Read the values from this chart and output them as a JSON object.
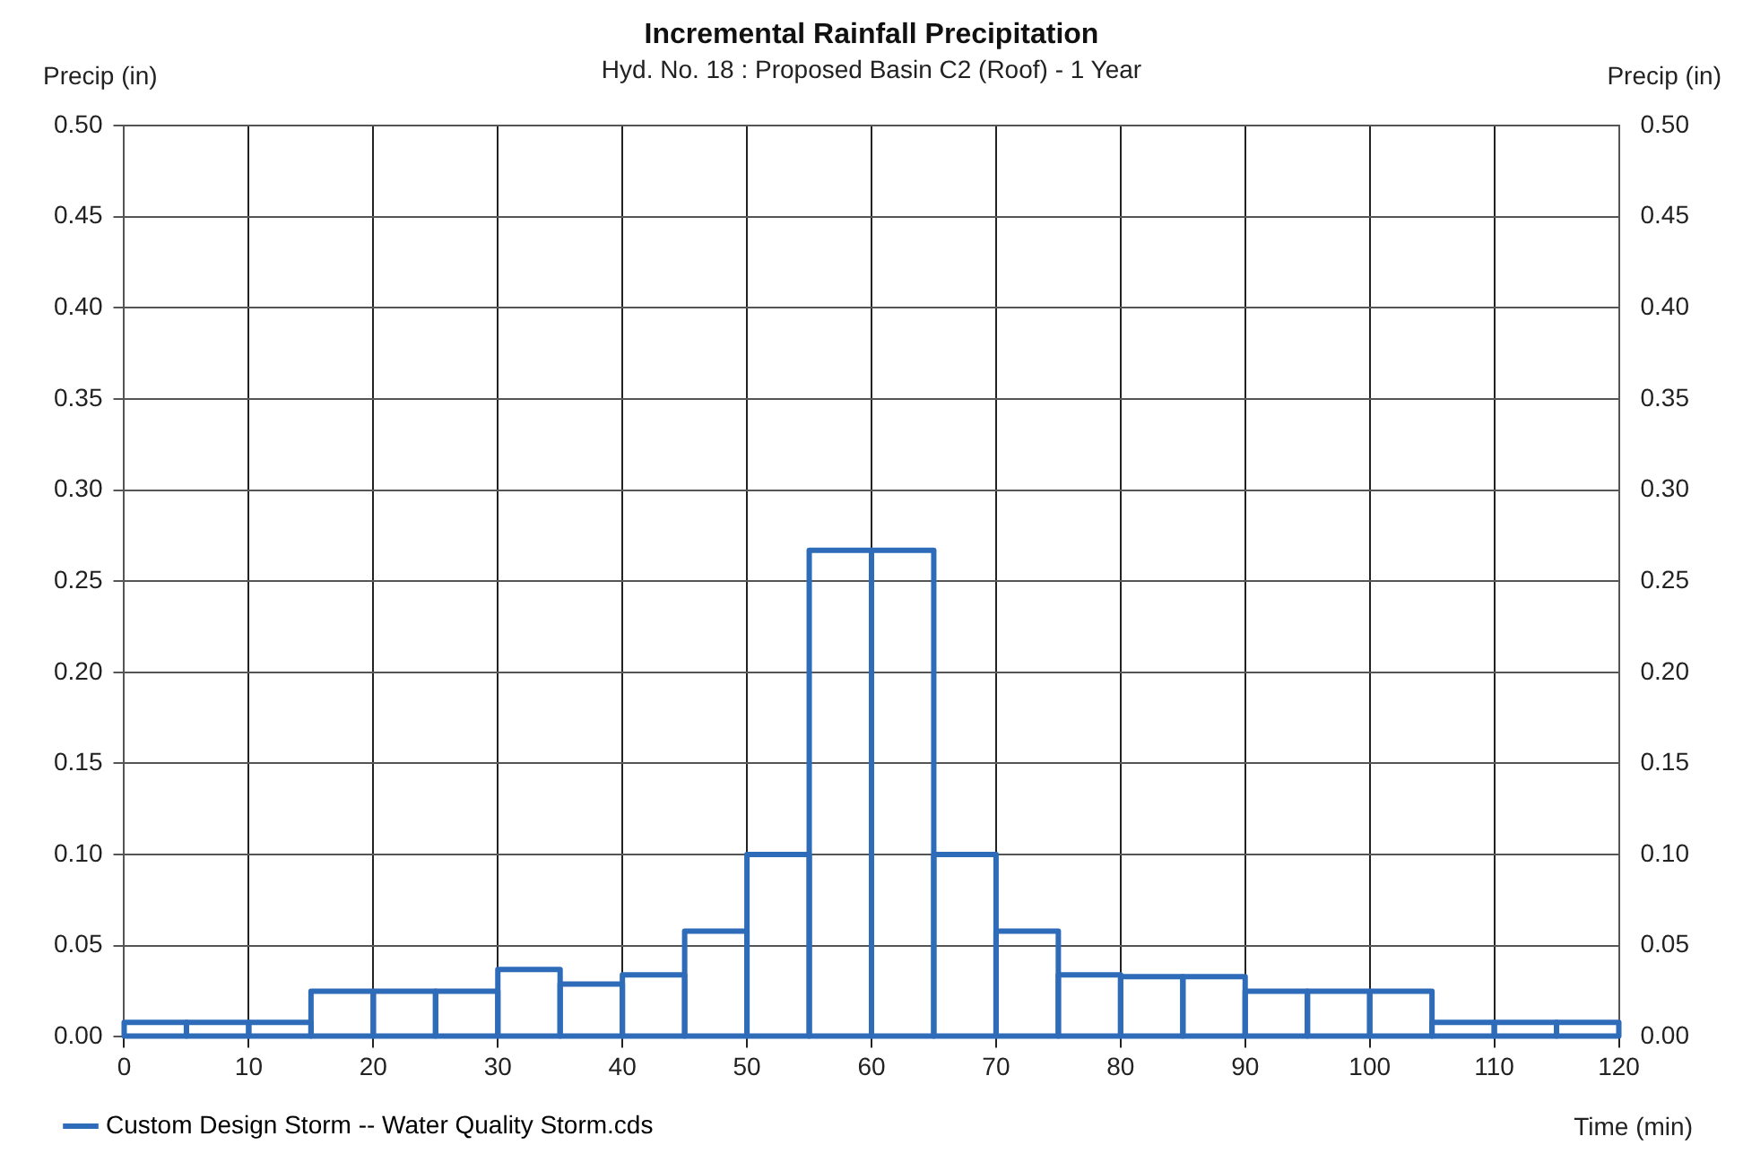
{
  "chart_data": {
    "type": "histogram",
    "title": "Incremental Rainfall Precipitation",
    "subtitle": "Hyd. No. 18 : Proposed Basin C2 (Roof) - 1 Year",
    "xlabel": "Time (min)",
    "ylabel": "Precip (in)",
    "y2label": "Precip (in)",
    "bins": [
      0,
      5,
      10,
      15,
      20,
      25,
      30,
      35,
      40,
      45,
      50,
      55,
      60,
      65,
      70,
      75,
      80,
      85,
      90,
      95,
      100,
      105,
      110,
      115,
      120
    ],
    "series": [
      {
        "name": "Custom Design Storm -- Water Quality Storm.cds",
        "color": "#2e6bb8",
        "values": [
          0.008,
          0.008,
          0.008,
          0.025,
          0.025,
          0.025,
          0.037,
          0.029,
          0.034,
          0.058,
          0.1,
          0.267,
          0.267,
          0.1,
          0.058,
          0.034,
          0.033,
          0.033,
          0.025,
          0.025,
          0.025,
          0.008,
          0.008,
          0.008
        ]
      }
    ],
    "xlim": [
      0,
      120
    ],
    "xticks": [
      0,
      10,
      20,
      30,
      40,
      50,
      60,
      70,
      80,
      90,
      100,
      110,
      120
    ],
    "ylim": [
      0,
      0.5
    ],
    "yticks": [
      {
        "value": 0,
        "label": "0.00"
      },
      {
        "value": 0.05,
        "label": "0.05"
      },
      {
        "value": 0.1,
        "label": "0.10"
      },
      {
        "value": 0.15,
        "label": "0.15"
      },
      {
        "value": 0.2,
        "label": "0.20"
      },
      {
        "value": 0.25,
        "label": "0.25"
      },
      {
        "value": 0.3,
        "label": "0.30"
      },
      {
        "value": 0.35,
        "label": "0.35"
      },
      {
        "value": 0.4,
        "label": "0.40"
      },
      {
        "value": 0.45,
        "label": "0.45"
      },
      {
        "value": 0.5,
        "label": "0.50"
      }
    ],
    "y2lim": [
      0,
      0.5
    ],
    "y2ticks": [
      {
        "value": 0,
        "label": "0.00"
      },
      {
        "value": 0.05,
        "label": "0.05"
      },
      {
        "value": 0.1,
        "label": "0.10"
      },
      {
        "value": 0.15,
        "label": "0.15"
      },
      {
        "value": 0.2,
        "label": "0.20"
      },
      {
        "value": 0.25,
        "label": "0.25"
      },
      {
        "value": 0.3,
        "label": "0.30"
      },
      {
        "value": 0.35,
        "label": "0.35"
      },
      {
        "value": 0.4,
        "label": "0.40"
      },
      {
        "value": 0.45,
        "label": "0.45"
      },
      {
        "value": 0.5,
        "label": "0.50"
      }
    ],
    "grid": true,
    "legend": "bottom left"
  }
}
